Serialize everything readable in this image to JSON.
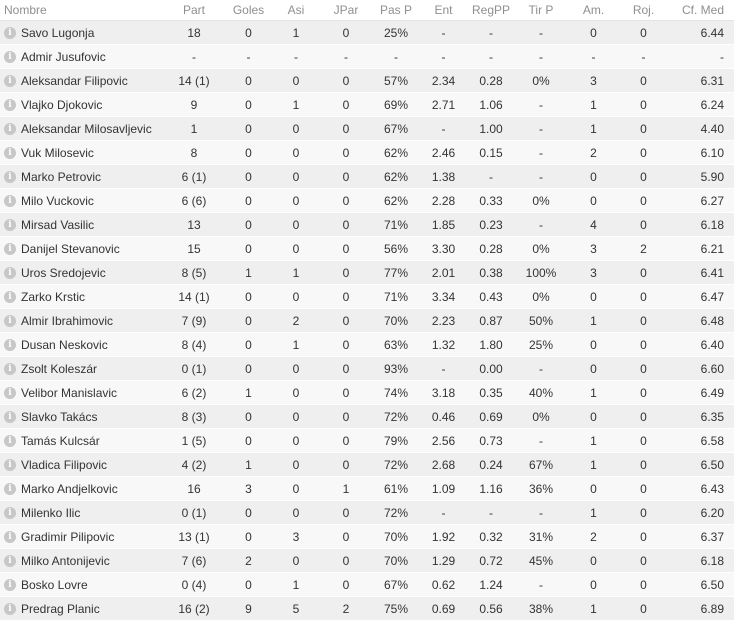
{
  "headers": {
    "name": "Nombre",
    "apps": "Part",
    "goals": "Goles",
    "assists": "Asi",
    "mom": "JPar",
    "pass_pct": "Pas P",
    "tackles": "Ent",
    "dribbles": "RegPP",
    "shot_pct": "Tir P",
    "yellow": "Am.",
    "red": "Roj.",
    "rating": "Cf. Med"
  },
  "icons": {
    "info": "info-icon",
    "info_color": "#c7c7c7"
  },
  "players": [
    {
      "name": "Savo Lugonja",
      "apps": "18",
      "goals": "0",
      "assists": "1",
      "mom": "0",
      "pass_pct": "25%",
      "tackles": "-",
      "dribbles": "-",
      "shot_pct": "-",
      "yellow": "0",
      "red": "0",
      "rating": "6.44"
    },
    {
      "name": "Admir Jusufovic",
      "apps": "-",
      "goals": "-",
      "assists": "-",
      "mom": "-",
      "pass_pct": "-",
      "tackles": "-",
      "dribbles": "-",
      "shot_pct": "-",
      "yellow": "-",
      "red": "-",
      "rating": "-"
    },
    {
      "name": "Aleksandar Filipovic",
      "apps": "14 (1)",
      "goals": "0",
      "assists": "0",
      "mom": "0",
      "pass_pct": "57%",
      "tackles": "2.34",
      "dribbles": "0.28",
      "shot_pct": "0%",
      "yellow": "3",
      "red": "0",
      "rating": "6.31"
    },
    {
      "name": "Vlajko Djokovic",
      "apps": "9",
      "goals": "0",
      "assists": "1",
      "mom": "0",
      "pass_pct": "69%",
      "tackles": "2.71",
      "dribbles": "1.06",
      "shot_pct": "-",
      "yellow": "1",
      "red": "0",
      "rating": "6.24"
    },
    {
      "name": "Aleksandar Milosavljevic",
      "apps": "1",
      "goals": "0",
      "assists": "0",
      "mom": "0",
      "pass_pct": "67%",
      "tackles": "-",
      "dribbles": "1.00",
      "shot_pct": "-",
      "yellow": "1",
      "red": "0",
      "rating": "4.40"
    },
    {
      "name": "Vuk Milosevic",
      "apps": "8",
      "goals": "0",
      "assists": "0",
      "mom": "0",
      "pass_pct": "62%",
      "tackles": "2.46",
      "dribbles": "0.15",
      "shot_pct": "-",
      "yellow": "2",
      "red": "0",
      "rating": "6.10"
    },
    {
      "name": "Marko Petrovic",
      "apps": "6 (1)",
      "goals": "0",
      "assists": "0",
      "mom": "0",
      "pass_pct": "62%",
      "tackles": "1.38",
      "dribbles": "-",
      "shot_pct": "-",
      "yellow": "0",
      "red": "0",
      "rating": "5.90"
    },
    {
      "name": "Milo Vuckovic",
      "apps": "6 (6)",
      "goals": "0",
      "assists": "0",
      "mom": "0",
      "pass_pct": "62%",
      "tackles": "2.28",
      "dribbles": "0.33",
      "shot_pct": "0%",
      "yellow": "0",
      "red": "0",
      "rating": "6.27"
    },
    {
      "name": "Mirsad Vasilic",
      "apps": "13",
      "goals": "0",
      "assists": "0",
      "mom": "0",
      "pass_pct": "71%",
      "tackles": "1.85",
      "dribbles": "0.23",
      "shot_pct": "-",
      "yellow": "4",
      "red": "0",
      "rating": "6.18"
    },
    {
      "name": "Danijel Stevanovic",
      "apps": "15",
      "goals": "0",
      "assists": "0",
      "mom": "0",
      "pass_pct": "56%",
      "tackles": "3.30",
      "dribbles": "0.28",
      "shot_pct": "0%",
      "yellow": "3",
      "red": "2",
      "rating": "6.21"
    },
    {
      "name": "Uros Sredojevic",
      "apps": "8 (5)",
      "goals": "1",
      "assists": "1",
      "mom": "0",
      "pass_pct": "77%",
      "tackles": "2.01",
      "dribbles": "0.38",
      "shot_pct": "100%",
      "yellow": "3",
      "red": "0",
      "rating": "6.41"
    },
    {
      "name": "Zarko Krstic",
      "apps": "14 (1)",
      "goals": "0",
      "assists": "0",
      "mom": "0",
      "pass_pct": "71%",
      "tackles": "3.34",
      "dribbles": "0.43",
      "shot_pct": "0%",
      "yellow": "0",
      "red": "0",
      "rating": "6.47"
    },
    {
      "name": "Almir Ibrahimovic",
      "apps": "7 (9)",
      "goals": "0",
      "assists": "2",
      "mom": "0",
      "pass_pct": "70%",
      "tackles": "2.23",
      "dribbles": "0.87",
      "shot_pct": "50%",
      "yellow": "1",
      "red": "0",
      "rating": "6.48"
    },
    {
      "name": "Dusan Neskovic",
      "apps": "8 (4)",
      "goals": "0",
      "assists": "1",
      "mom": "0",
      "pass_pct": "63%",
      "tackles": "1.32",
      "dribbles": "1.80",
      "shot_pct": "25%",
      "yellow": "0",
      "red": "0",
      "rating": "6.40"
    },
    {
      "name": "Zsolt Koleszár",
      "apps": "0 (1)",
      "goals": "0",
      "assists": "0",
      "mom": "0",
      "pass_pct": "93%",
      "tackles": "-",
      "dribbles": "0.00",
      "shot_pct": "-",
      "yellow": "0",
      "red": "0",
      "rating": "6.60"
    },
    {
      "name": "Velibor Manislavic",
      "apps": "6 (2)",
      "goals": "1",
      "assists": "0",
      "mom": "0",
      "pass_pct": "74%",
      "tackles": "3.18",
      "dribbles": "0.35",
      "shot_pct": "40%",
      "yellow": "1",
      "red": "0",
      "rating": "6.49"
    },
    {
      "name": "Slavko Takács",
      "apps": "8 (3)",
      "goals": "0",
      "assists": "0",
      "mom": "0",
      "pass_pct": "72%",
      "tackles": "0.46",
      "dribbles": "0.69",
      "shot_pct": "0%",
      "yellow": "0",
      "red": "0",
      "rating": "6.35"
    },
    {
      "name": "Tamás Kulcsár",
      "apps": "1 (5)",
      "goals": "0",
      "assists": "0",
      "mom": "0",
      "pass_pct": "79%",
      "tackles": "2.56",
      "dribbles": "0.73",
      "shot_pct": "-",
      "yellow": "1",
      "red": "0",
      "rating": "6.58"
    },
    {
      "name": "Vladica Filipovic",
      "apps": "4 (2)",
      "goals": "1",
      "assists": "0",
      "mom": "0",
      "pass_pct": "72%",
      "tackles": "2.68",
      "dribbles": "0.24",
      "shot_pct": "67%",
      "yellow": "1",
      "red": "0",
      "rating": "6.50"
    },
    {
      "name": "Marko Andjelkovic",
      "apps": "16",
      "goals": "3",
      "assists": "0",
      "mom": "1",
      "pass_pct": "61%",
      "tackles": "1.09",
      "dribbles": "1.16",
      "shot_pct": "36%",
      "yellow": "0",
      "red": "0",
      "rating": "6.43"
    },
    {
      "name": "Milenko Ilic",
      "apps": "0 (1)",
      "goals": "0",
      "assists": "0",
      "mom": "0",
      "pass_pct": "72%",
      "tackles": "-",
      "dribbles": "-",
      "shot_pct": "-",
      "yellow": "1",
      "red": "0",
      "rating": "6.20"
    },
    {
      "name": "Gradimir Pilipovic",
      "apps": "13 (1)",
      "goals": "0",
      "assists": "3",
      "mom": "0",
      "pass_pct": "70%",
      "tackles": "1.92",
      "dribbles": "0.32",
      "shot_pct": "31%",
      "yellow": "2",
      "red": "0",
      "rating": "6.37"
    },
    {
      "name": "Milko Antonijevic",
      "apps": "7 (6)",
      "goals": "2",
      "assists": "0",
      "mom": "0",
      "pass_pct": "70%",
      "tackles": "1.29",
      "dribbles": "0.72",
      "shot_pct": "45%",
      "yellow": "0",
      "red": "0",
      "rating": "6.18"
    },
    {
      "name": "Bosko Lovre",
      "apps": "0 (4)",
      "goals": "0",
      "assists": "1",
      "mom": "0",
      "pass_pct": "67%",
      "tackles": "0.62",
      "dribbles": "1.24",
      "shot_pct": "-",
      "yellow": "0",
      "red": "0",
      "rating": "6.50"
    },
    {
      "name": "Predrag Planic",
      "apps": "16 (2)",
      "goals": "9",
      "assists": "5",
      "mom": "2",
      "pass_pct": "75%",
      "tackles": "0.69",
      "dribbles": "0.56",
      "shot_pct": "38%",
      "yellow": "1",
      "red": "0",
      "rating": "6.89"
    }
  ]
}
